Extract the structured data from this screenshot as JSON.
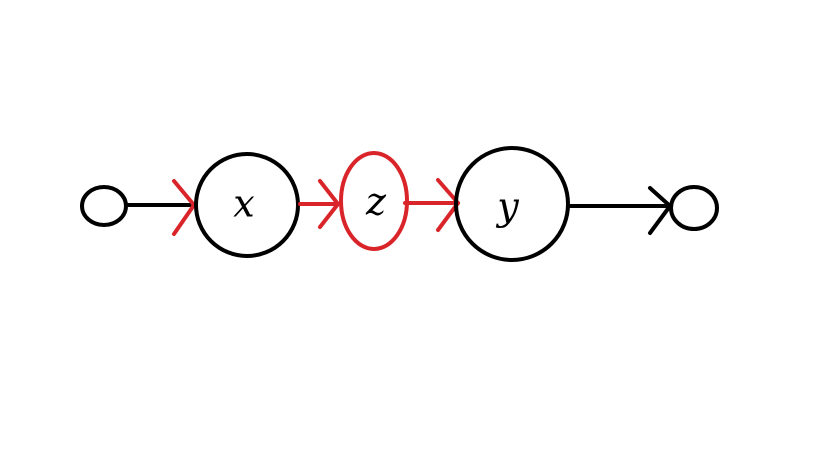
{
  "diagram": {
    "colors": {
      "stroke": "#000000",
      "highlight": "#d9252a",
      "background": "#ffffff"
    },
    "nodes": [
      {
        "id": "start",
        "kind": "terminal",
        "label": ""
      },
      {
        "id": "x",
        "kind": "variable",
        "label": "x",
        "highlighted": false
      },
      {
        "id": "z",
        "kind": "variable",
        "label": "z",
        "highlighted": true
      },
      {
        "id": "y",
        "kind": "variable",
        "label": "y",
        "highlighted": false
      },
      {
        "id": "end",
        "kind": "terminal",
        "label": ""
      }
    ],
    "edges": [
      {
        "from": "start",
        "to": "x",
        "highlighted": false
      },
      {
        "from": "x",
        "to": "z",
        "highlighted": true
      },
      {
        "from": "z",
        "to": "y",
        "highlighted": true
      },
      {
        "from": "y",
        "to": "end",
        "highlighted": false
      }
    ]
  }
}
